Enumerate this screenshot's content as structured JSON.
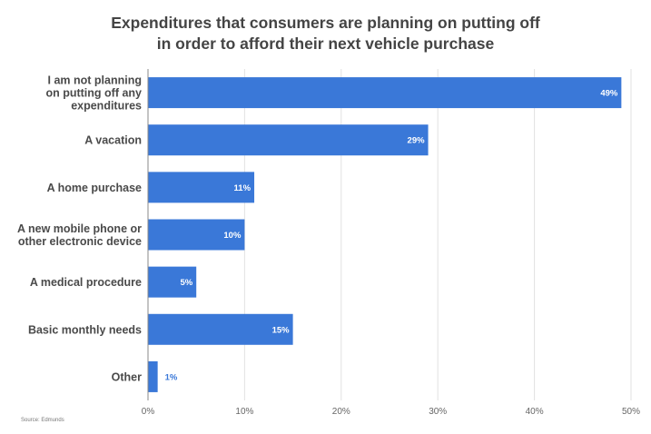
{
  "chart_data": {
    "type": "bar",
    "orientation": "horizontal",
    "title_lines": [
      "Expenditures that consumers are planning on putting off",
      "in order to afford their next vehicle purchase"
    ],
    "categories": [
      [
        "I am not planning",
        "on putting off any",
        "expenditures"
      ],
      [
        "A vacation"
      ],
      [
        "A home purchase"
      ],
      [
        "A new mobile phone or",
        "other electronic device"
      ],
      [
        "A medical procedure"
      ],
      [
        "Basic monthly needs"
      ],
      [
        "Other"
      ]
    ],
    "values": [
      49,
      29,
      11,
      10,
      5,
      15,
      1
    ],
    "data_labels": [
      "49%",
      "29%",
      "11%",
      "10%",
      "5%",
      "15%",
      "1%"
    ],
    "xlim": [
      0,
      50
    ],
    "x_ticks": [
      0,
      10,
      20,
      30,
      40,
      50
    ],
    "x_tick_labels": [
      "0%",
      "10%",
      "20%",
      "30%",
      "40%",
      "50%"
    ],
    "xlabel": "",
    "ylabel": "",
    "grid": "vertical",
    "legend": "none",
    "bar_color": "#3a78d8",
    "source": "Source: Edmunds"
  }
}
